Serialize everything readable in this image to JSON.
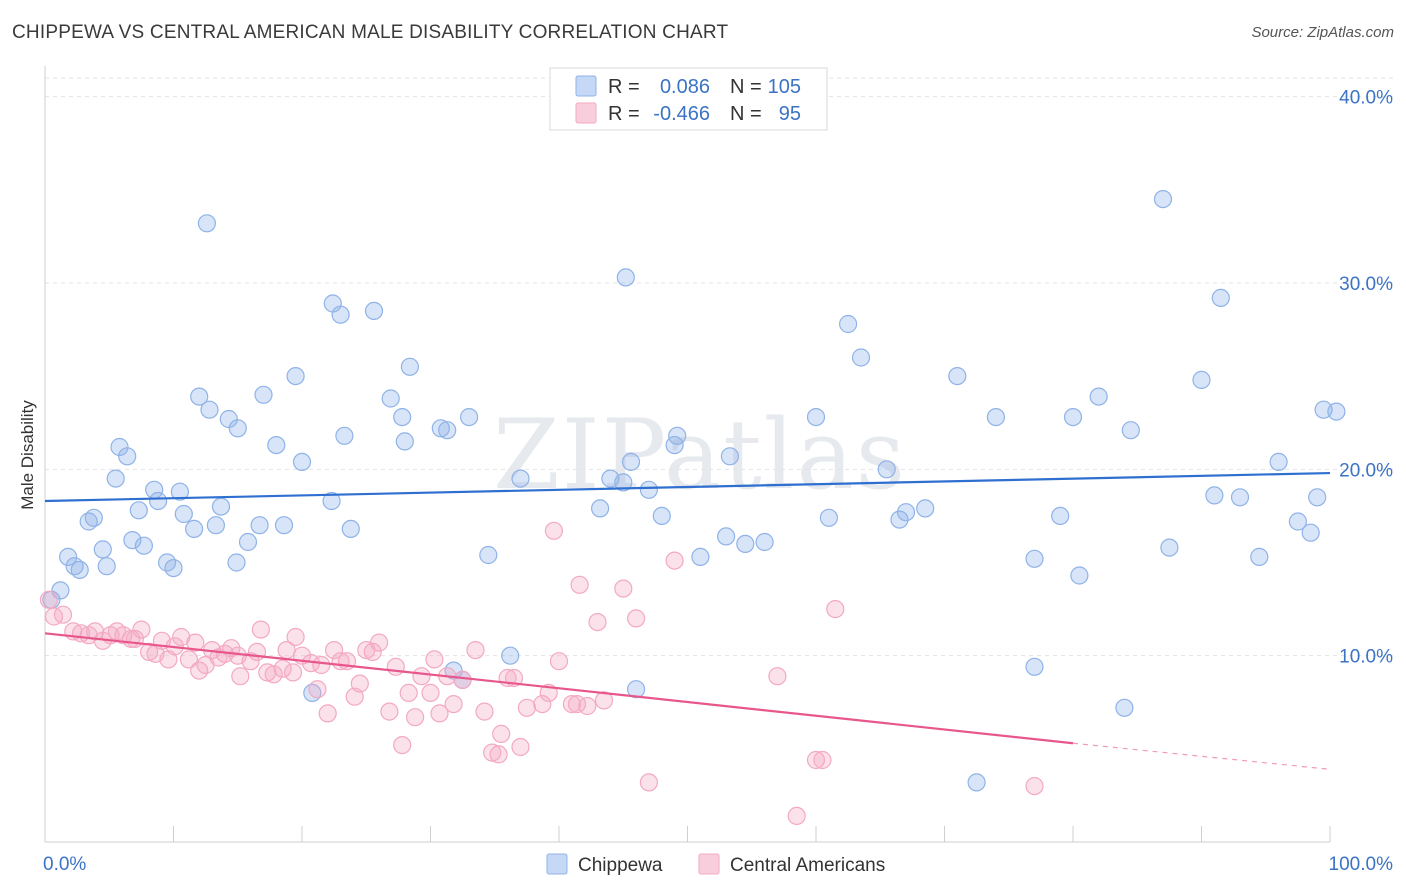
{
  "chart_data": {
    "type": "scatter",
    "title": "CHIPPEWA VS CENTRAL AMERICAN MALE DISABILITY CORRELATION CHART",
    "source": "Source: ZipAtlas.com",
    "ylabel": "Male Disability",
    "xlabel": "",
    "xlim": [
      0,
      100
    ],
    "ylim": [
      0,
      41
    ],
    "x_tick_labels": [
      "0.0%",
      "100.0%"
    ],
    "y_ticks": [
      10,
      20,
      30,
      40
    ],
    "y_tick_labels": [
      "10.0%",
      "20.0%",
      "30.0%",
      "40.0%"
    ],
    "watermark": "ZIPatlas",
    "legend": [
      {
        "name": "Chippewa",
        "r_label": "R =",
        "r_value": "0.086",
        "n_label": "N =",
        "n_value": "105"
      },
      {
        "name": "Central Americans",
        "r_label": "R =",
        "r_value": "-0.466",
        "n_label": "N =",
        "n_value": "95"
      }
    ],
    "series": [
      {
        "name": "Chippewa",
        "color": "#8fb3e8",
        "line_color": "#2f6fd0",
        "trend": {
          "x": [
            0,
            100
          ],
          "y": [
            18.3,
            19.8
          ]
        },
        "points": [
          [
            0.5,
            13.0
          ],
          [
            1.2,
            13.5
          ],
          [
            1.8,
            15.3
          ],
          [
            2.3,
            14.8
          ],
          [
            2.7,
            14.6
          ],
          [
            3.4,
            17.2
          ],
          [
            3.8,
            17.4
          ],
          [
            4.5,
            15.7
          ],
          [
            4.8,
            14.8
          ],
          [
            5.5,
            19.5
          ],
          [
            5.8,
            21.2
          ],
          [
            6.4,
            20.7
          ],
          [
            6.8,
            16.2
          ],
          [
            7.3,
            17.8
          ],
          [
            7.7,
            15.9
          ],
          [
            8.5,
            18.9
          ],
          [
            8.8,
            18.3
          ],
          [
            9.5,
            15.0
          ],
          [
            10.0,
            14.7
          ],
          [
            10.5,
            18.8
          ],
          [
            10.8,
            17.6
          ],
          [
            11.6,
            16.8
          ],
          [
            12.0,
            23.9
          ],
          [
            12.6,
            33.2
          ],
          [
            12.8,
            23.2
          ],
          [
            13.3,
            17.0
          ],
          [
            13.7,
            18.0
          ],
          [
            14.3,
            22.7
          ],
          [
            14.9,
            15.0
          ],
          [
            15.0,
            22.2
          ],
          [
            15.8,
            16.1
          ],
          [
            16.7,
            17.0
          ],
          [
            17.0,
            24.0
          ],
          [
            18.0,
            21.3
          ],
          [
            18.6,
            17.0
          ],
          [
            19.5,
            25.0
          ],
          [
            20.0,
            20.4
          ],
          [
            20.8,
            8.0
          ],
          [
            22.3,
            18.3
          ],
          [
            22.4,
            28.9
          ],
          [
            23.0,
            28.3
          ],
          [
            23.3,
            21.8
          ],
          [
            23.8,
            16.8
          ],
          [
            25.6,
            28.5
          ],
          [
            26.9,
            23.8
          ],
          [
            27.8,
            22.8
          ],
          [
            28.0,
            21.5
          ],
          [
            28.4,
            25.5
          ],
          [
            30.8,
            22.2
          ],
          [
            31.3,
            22.1
          ],
          [
            31.8,
            9.2
          ],
          [
            32.5,
            8.7
          ],
          [
            33.0,
            22.8
          ],
          [
            34.5,
            15.4
          ],
          [
            36.2,
            10.0
          ],
          [
            37.0,
            19.5
          ],
          [
            43.2,
            17.9
          ],
          [
            44.0,
            19.5
          ],
          [
            45.0,
            19.3
          ],
          [
            45.2,
            30.3
          ],
          [
            45.6,
            20.4
          ],
          [
            46.0,
            8.2
          ],
          [
            47.0,
            18.9
          ],
          [
            48.0,
            17.5
          ],
          [
            49.0,
            21.3
          ],
          [
            49.2,
            21.8
          ],
          [
            51.0,
            15.3
          ],
          [
            53.0,
            16.4
          ],
          [
            53.3,
            20.7
          ],
          [
            54.5,
            16.0
          ],
          [
            56.0,
            16.1
          ],
          [
            60.0,
            22.8
          ],
          [
            61.0,
            17.4
          ],
          [
            62.5,
            27.8
          ],
          [
            63.5,
            26.0
          ],
          [
            65.5,
            20.0
          ],
          [
            66.5,
            17.3
          ],
          [
            67.0,
            17.7
          ],
          [
            68.5,
            17.9
          ],
          [
            71.0,
            25.0
          ],
          [
            72.5,
            3.2
          ],
          [
            74.0,
            22.8
          ],
          [
            77.0,
            15.2
          ],
          [
            77.0,
            9.4
          ],
          [
            79.0,
            17.5
          ],
          [
            80.0,
            22.8
          ],
          [
            80.5,
            14.3
          ],
          [
            82.0,
            23.9
          ],
          [
            84.0,
            7.2
          ],
          [
            84.5,
            22.1
          ],
          [
            87.0,
            34.5
          ],
          [
            87.5,
            15.8
          ],
          [
            90.0,
            24.8
          ],
          [
            91.0,
            18.6
          ],
          [
            91.5,
            29.2
          ],
          [
            93.0,
            18.5
          ],
          [
            94.5,
            15.3
          ],
          [
            96.0,
            20.4
          ],
          [
            97.5,
            17.2
          ],
          [
            98.5,
            16.6
          ],
          [
            99.0,
            18.5
          ],
          [
            99.5,
            23.2
          ],
          [
            100.5,
            23.1
          ]
        ]
      },
      {
        "name": "Central Americans",
        "color": "#f3a9c2",
        "line_color": "#e8578b",
        "trend": {
          "x": [
            0,
            80
          ],
          "y": [
            11.2,
            5.3
          ]
        },
        "trend_dashed": {
          "x": [
            80,
            100
          ],
          "y": [
            5.3,
            3.9
          ]
        },
        "points": [
          [
            0.3,
            13.0
          ],
          [
            0.7,
            12.1
          ],
          [
            1.4,
            12.2
          ],
          [
            2.2,
            11.3
          ],
          [
            2.8,
            11.2
          ],
          [
            3.4,
            11.1
          ],
          [
            3.9,
            11.3
          ],
          [
            4.5,
            10.8
          ],
          [
            5.1,
            11.1
          ],
          [
            5.6,
            11.3
          ],
          [
            6.1,
            11.1
          ],
          [
            6.7,
            10.9
          ],
          [
            7.0,
            10.9
          ],
          [
            7.5,
            11.4
          ],
          [
            8.1,
            10.2
          ],
          [
            8.6,
            10.1
          ],
          [
            9.1,
            10.8
          ],
          [
            9.6,
            9.8
          ],
          [
            10.1,
            10.5
          ],
          [
            10.6,
            11.0
          ],
          [
            11.2,
            9.8
          ],
          [
            11.7,
            10.7
          ],
          [
            12.0,
            9.2
          ],
          [
            12.5,
            9.5
          ],
          [
            13.0,
            10.3
          ],
          [
            13.5,
            9.9
          ],
          [
            14.0,
            10.1
          ],
          [
            14.5,
            10.4
          ],
          [
            15.0,
            10.0
          ],
          [
            15.2,
            8.9
          ],
          [
            16.0,
            9.7
          ],
          [
            16.5,
            10.2
          ],
          [
            16.8,
            11.4
          ],
          [
            17.3,
            9.1
          ],
          [
            17.8,
            9.0
          ],
          [
            18.5,
            9.3
          ],
          [
            18.8,
            10.3
          ],
          [
            19.3,
            9.1
          ],
          [
            19.5,
            11.0
          ],
          [
            20.0,
            10.0
          ],
          [
            20.7,
            9.6
          ],
          [
            21.2,
            8.2
          ],
          [
            21.5,
            9.5
          ],
          [
            22.0,
            6.9
          ],
          [
            22.5,
            10.3
          ],
          [
            23.0,
            9.7
          ],
          [
            23.5,
            9.7
          ],
          [
            24.1,
            7.8
          ],
          [
            24.5,
            8.5
          ],
          [
            25.0,
            10.3
          ],
          [
            25.5,
            10.2
          ],
          [
            26.0,
            10.7
          ],
          [
            26.8,
            7.0
          ],
          [
            27.3,
            9.4
          ],
          [
            27.8,
            5.2
          ],
          [
            28.3,
            8.0
          ],
          [
            28.8,
            6.7
          ],
          [
            29.3,
            8.9
          ],
          [
            30.0,
            8.0
          ],
          [
            30.3,
            9.8
          ],
          [
            30.7,
            6.9
          ],
          [
            31.3,
            8.9
          ],
          [
            31.8,
            7.4
          ],
          [
            32.5,
            8.7
          ],
          [
            33.5,
            10.3
          ],
          [
            34.2,
            7.0
          ],
          [
            34.8,
            4.8
          ],
          [
            35.3,
            4.7
          ],
          [
            35.5,
            5.8
          ],
          [
            36.0,
            8.8
          ],
          [
            36.5,
            8.8
          ],
          [
            37.0,
            5.1
          ],
          [
            37.5,
            7.2
          ],
          [
            38.7,
            7.4
          ],
          [
            39.2,
            8.0
          ],
          [
            39.6,
            16.7
          ],
          [
            40.0,
            9.7
          ],
          [
            41.0,
            7.4
          ],
          [
            41.4,
            7.4
          ],
          [
            41.6,
            13.8
          ],
          [
            42.2,
            7.3
          ],
          [
            43.0,
            11.8
          ],
          [
            43.5,
            7.6
          ],
          [
            45.0,
            13.6
          ],
          [
            46.0,
            12.0
          ],
          [
            47.0,
            3.2
          ],
          [
            49.0,
            15.1
          ],
          [
            57.0,
            8.9
          ],
          [
            58.5,
            1.4
          ],
          [
            60.0,
            4.4
          ],
          [
            60.5,
            4.4
          ],
          [
            61.5,
            12.5
          ],
          [
            77.0,
            3.0
          ]
        ]
      }
    ]
  }
}
